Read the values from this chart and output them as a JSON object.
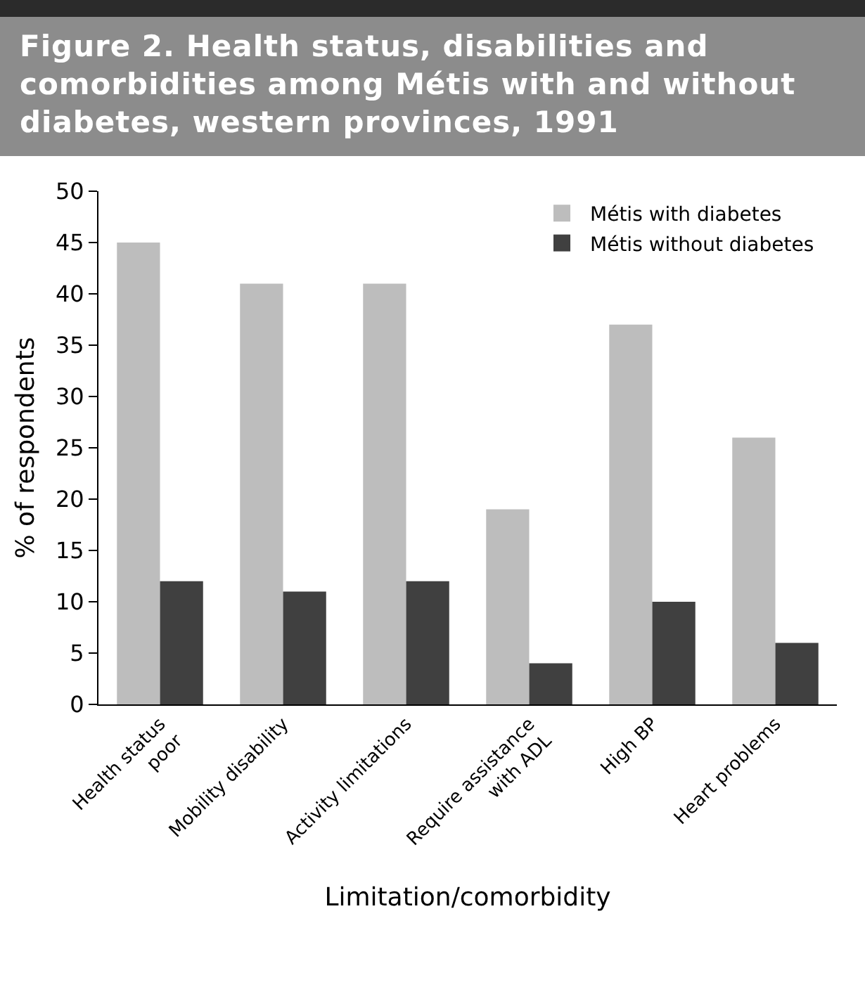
{
  "chart_data": {
    "type": "bar",
    "title": "Figure 2. Health status, disabilities and comorbidities among Métis with and without diabetes, western provinces, 1991",
    "xlabel": "Limitation/comorbidity",
    "ylabel": "% of respondents",
    "categories": [
      "Health status\npoor",
      "Mobility disability",
      "Activity limitations",
      "Require assistance\nwith ADL",
      "High BP",
      "Heart problems"
    ],
    "series": [
      {
        "name": "Métis with diabetes",
        "color": "#bdbdbd",
        "values": [
          45,
          41,
          41,
          19,
          37,
          26
        ]
      },
      {
        "name": "Métis without diabetes",
        "color": "#404040",
        "values": [
          12,
          11,
          12,
          4,
          10,
          6
        ]
      }
    ],
    "ylim": [
      0,
      50
    ],
    "yticks": [
      0,
      5,
      10,
      15,
      20,
      25,
      30,
      35,
      40,
      45,
      50
    ],
    "grid": false,
    "legend": "top right"
  }
}
